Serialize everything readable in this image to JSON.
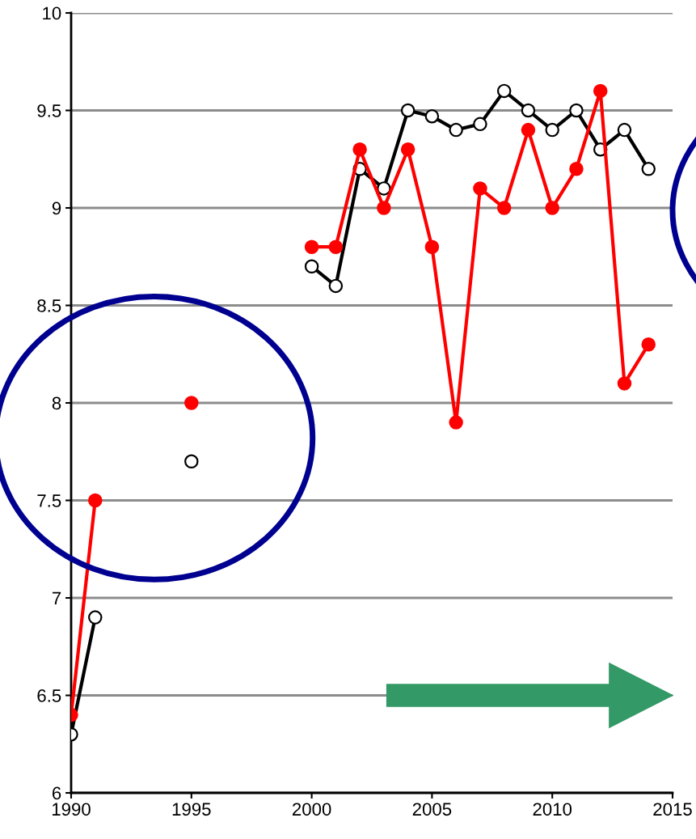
{
  "chart_data": {
    "type": "line",
    "x": [
      1990,
      1991,
      1992,
      1993,
      1994,
      1995,
      1996,
      1997,
      1998,
      1999,
      2000,
      2001,
      2002,
      2003,
      2004,
      2005,
      2006,
      2007,
      2008,
      2009,
      2010,
      2011,
      2012,
      2013,
      2014
    ],
    "series": [
      {
        "color": "#000000",
        "values": [
          6.3,
          6.9,
          null,
          null,
          null,
          7.7,
          null,
          null,
          null,
          null,
          8.7,
          8.6,
          9.2,
          9.1,
          9.5,
          9.47,
          9.4,
          9.43,
          9.6,
          9.5,
          9.4,
          9.5,
          9.3,
          9.4,
          9.2
        ]
      },
      {
        "color": "#ff0000",
        "values": [
          6.4,
          7.5,
          null,
          null,
          null,
          8.0,
          null,
          null,
          null,
          null,
          8.8,
          8.8,
          9.3,
          9.0,
          9.3,
          8.8,
          7.9,
          9.1,
          9.0,
          9.4,
          9.0,
          9.2,
          9.6,
          8.1,
          8.3
        ]
      }
    ],
    "xlim": [
      1990,
      2015
    ],
    "xticks": [
      1990,
      1995,
      2000,
      2005,
      2010,
      2015
    ],
    "ylim": [
      6,
      10
    ],
    "yticks": [
      6,
      6.5,
      7,
      7.5,
      8,
      8.5,
      9,
      9.5,
      10
    ],
    "grid": "y",
    "legend": false,
    "marker": "circle",
    "line_style": "solid"
  }
}
